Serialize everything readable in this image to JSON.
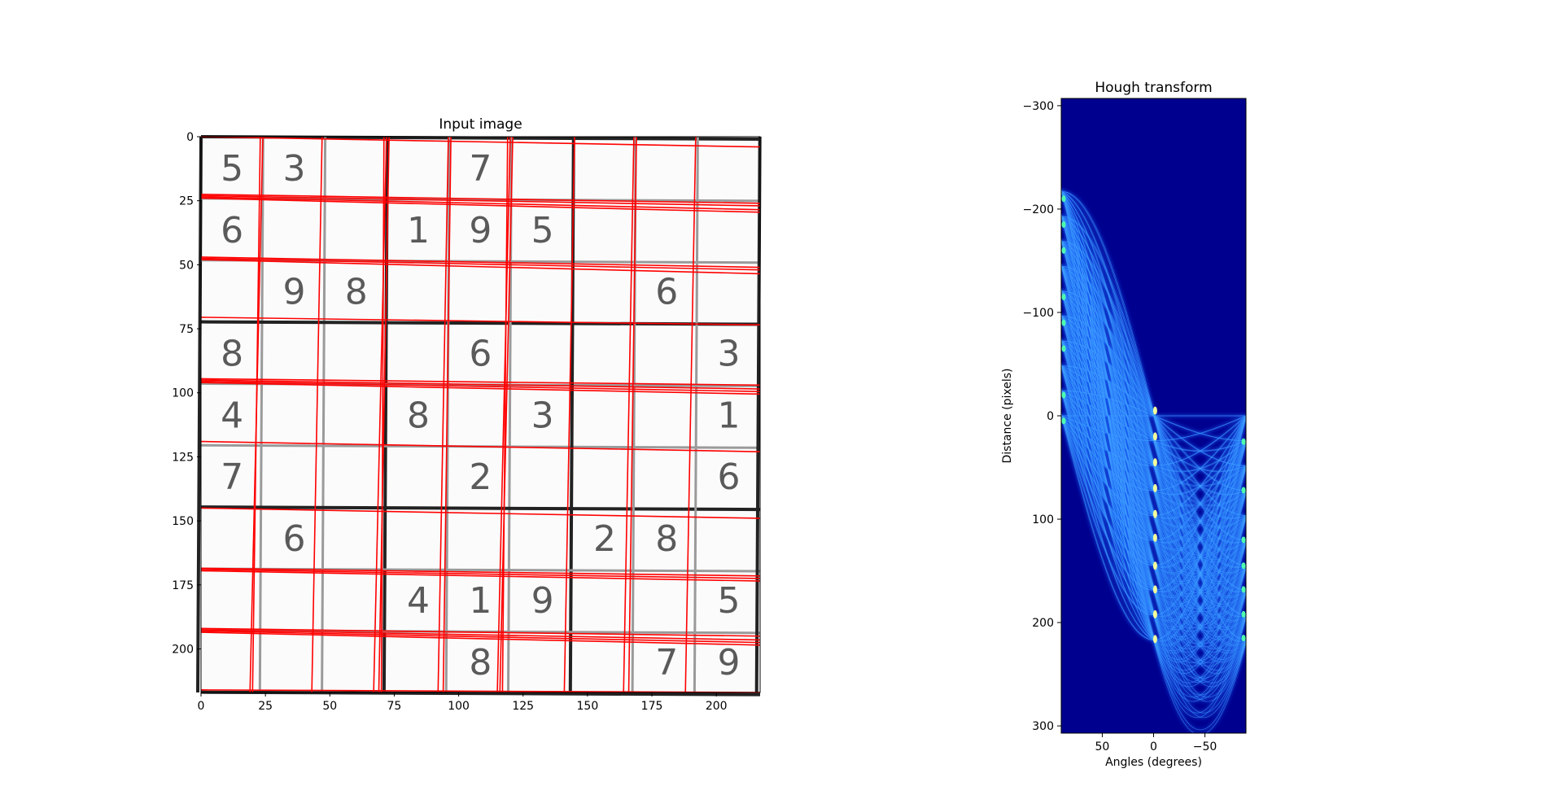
{
  "chart_data": [
    {
      "type": "image",
      "title": "Input image",
      "xlim": [
        0,
        217
      ],
      "ylim": [
        217,
        0
      ],
      "xticks": [
        0,
        25,
        50,
        75,
        100,
        125,
        150,
        175,
        200
      ],
      "yticks": [
        0,
        25,
        50,
        75,
        100,
        125,
        150,
        175,
        200
      ],
      "grid_cell_size": 24.1,
      "grid_digits": [
        [
          "5",
          "3",
          "",
          "",
          "7",
          "",
          "",
          "",
          ""
        ],
        [
          "6",
          "",
          "",
          "1",
          "9",
          "5",
          "",
          "",
          ""
        ],
        [
          "",
          "9",
          "8",
          "",
          "",
          "",
          "",
          "6",
          ""
        ],
        [
          "8",
          "",
          "",
          "",
          "6",
          "",
          "",
          "",
          "3"
        ],
        [
          "4",
          "",
          "",
          "8",
          "",
          "3",
          "",
          "",
          "1"
        ],
        [
          "7",
          "",
          "",
          "",
          "2",
          "",
          "",
          "",
          "6"
        ],
        [
          "",
          "6",
          "",
          "",
          "",
          "",
          "2",
          "8",
          ""
        ],
        [
          "",
          "",
          "",
          "4",
          "1",
          "9",
          "",
          "",
          "5"
        ],
        [
          "",
          "",
          "",
          "",
          "8",
          "",
          "",
          "7",
          "9"
        ]
      ],
      "detected_lines_color": "#ff0000",
      "detected_lines": [
        {
          "x0": 0,
          "y0": 0,
          "x1": 217,
          "y1": 4
        },
        {
          "x0": 0,
          "y0": 22.5,
          "x1": 217,
          "y1": 26
        },
        {
          "x0": 0,
          "y0": 23,
          "x1": 217,
          "y1": 27
        },
        {
          "x0": 0,
          "y0": 23.5,
          "x1": 217,
          "y1": 28.5
        },
        {
          "x0": 0,
          "y0": 24,
          "x1": 217,
          "y1": 29.5
        },
        {
          "x0": 0,
          "y0": 47,
          "x1": 217,
          "y1": 51
        },
        {
          "x0": 0,
          "y0": 47.5,
          "x1": 217,
          "y1": 52
        },
        {
          "x0": 0,
          "y0": 48,
          "x1": 217,
          "y1": 53.5
        },
        {
          "x0": 0,
          "y0": 70.5,
          "x1": 217,
          "y1": 73.5
        },
        {
          "x0": 0,
          "y0": 94.5,
          "x1": 217,
          "y1": 97
        },
        {
          "x0": 0,
          "y0": 95,
          "x1": 217,
          "y1": 98.5
        },
        {
          "x0": 0,
          "y0": 95.5,
          "x1": 217,
          "y1": 99.5
        },
        {
          "x0": 0,
          "y0": 96,
          "x1": 217,
          "y1": 100.5
        },
        {
          "x0": 0,
          "y0": 119,
          "x1": 217,
          "y1": 123
        },
        {
          "x0": 0,
          "y0": 145,
          "x1": 217,
          "y1": 149
        },
        {
          "x0": 0,
          "y0": 168.5,
          "x1": 217,
          "y1": 171.5
        },
        {
          "x0": 0,
          "y0": 169,
          "x1": 217,
          "y1": 172.5
        },
        {
          "x0": 0,
          "y0": 169.5,
          "x1": 217,
          "y1": 173.5
        },
        {
          "x0": 0,
          "y0": 192,
          "x1": 217,
          "y1": 195
        },
        {
          "x0": 0,
          "y0": 192.5,
          "x1": 217,
          "y1": 196.5
        },
        {
          "x0": 0,
          "y0": 193,
          "x1": 217,
          "y1": 197.5
        },
        {
          "x0": 0,
          "y0": 193.5,
          "x1": 217,
          "y1": 198.5
        },
        {
          "x0": 0,
          "y0": 216,
          "x1": 217,
          "y1": 217
        },
        {
          "x0": 24,
          "y0": 0,
          "x1": 19,
          "y1": 217
        },
        {
          "x0": 23,
          "y0": 0,
          "x1": 20,
          "y1": 217
        },
        {
          "x0": 47,
          "y0": 0,
          "x1": 43,
          "y1": 217
        },
        {
          "x0": 72,
          "y0": 0,
          "x1": 67,
          "y1": 217
        },
        {
          "x0": 73,
          "y0": 0,
          "x1": 69,
          "y1": 217
        },
        {
          "x0": 71,
          "y0": 0,
          "x1": 70,
          "y1": 217
        },
        {
          "x0": 96,
          "y0": 0,
          "x1": 92,
          "y1": 217
        },
        {
          "x0": 97,
          "y0": 0,
          "x1": 94,
          "y1": 217
        },
        {
          "x0": 120,
          "y0": 0,
          "x1": 115,
          "y1": 217
        },
        {
          "x0": 121,
          "y0": 0,
          "x1": 116,
          "y1": 217
        },
        {
          "x0": 119,
          "y0": 0,
          "x1": 117,
          "y1": 217
        },
        {
          "x0": 145,
          "y0": 0,
          "x1": 141,
          "y1": 217
        },
        {
          "x0": 168,
          "y0": 0,
          "x1": 164,
          "y1": 217
        },
        {
          "x0": 169,
          "y0": 0,
          "x1": 166,
          "y1": 217
        },
        {
          "x0": 192,
          "y0": 0,
          "x1": 188,
          "y1": 217
        }
      ]
    },
    {
      "type": "heatmap",
      "title": "Hough transform",
      "xlabel": "Angles (degrees)",
      "ylabel": "Distance (pixels)",
      "xlim": [
        90,
        -90
      ],
      "ylim": [
        307,
        -307
      ],
      "xticks": [
        50,
        0,
        -50
      ],
      "xtick_labels": [
        "50",
        "0",
        "−50"
      ],
      "yticks": [
        -300,
        -200,
        -100,
        0,
        100,
        200,
        300
      ],
      "ytick_labels": [
        "−300",
        "−200",
        "−100",
        "0",
        "100",
        "200",
        "300"
      ],
      "colormap": "jet",
      "image_diagonal": 307
    }
  ]
}
